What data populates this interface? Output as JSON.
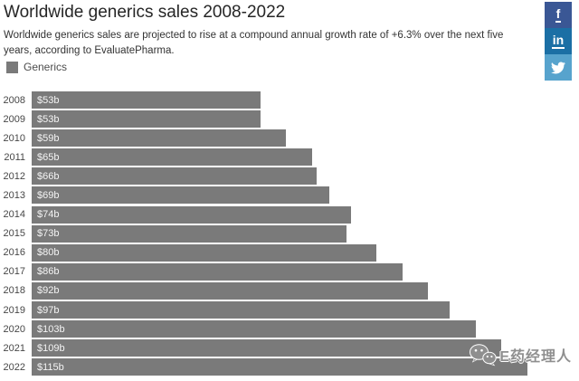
{
  "header": {
    "title": "Worldwide generics sales 2008-2022",
    "subtitle": "Worldwide generics sales are projected to rise at a compound annual growth rate of +6.3% over the next five years, according to EvaluatePharma."
  },
  "legend": {
    "label": "Generics",
    "marker_color": "#7a7a7a"
  },
  "social": {
    "facebook": {
      "glyph": "f",
      "color": "#3a5795"
    },
    "linkedin": {
      "glyph": "in",
      "color": "#1b6fa5"
    },
    "twitter": {
      "color": "#57a3cd"
    }
  },
  "watermark": {
    "text": "E药经理人"
  },
  "chart_data": {
    "type": "bar",
    "orientation": "horizontal",
    "title": "Worldwide generics sales 2008-2022",
    "subtitle": "Worldwide generics sales are projected to rise at a compound annual growth rate of +6.3% over the next five years, according to EvaluatePharma.",
    "categories": [
      "2008",
      "2009",
      "2010",
      "2011",
      "2012",
      "2013",
      "2014",
      "2015",
      "2016",
      "2017",
      "2018",
      "2019",
      "2020",
      "2021",
      "2022"
    ],
    "series": [
      {
        "name": "Generics",
        "values": [
          53,
          53,
          59,
          65,
          66,
          69,
          74,
          73,
          80,
          86,
          92,
          97,
          103,
          109,
          115
        ],
        "labels": [
          "$53b",
          "$53b",
          "$59b",
          "$65b",
          "$66b",
          "$69b",
          "$74b",
          "$73b",
          "$80b",
          "$86b",
          "$92b",
          "$97b",
          "$103b",
          "$109b",
          "$115b"
        ],
        "color": "#7a7a7a"
      }
    ],
    "xlabel": "",
    "ylabel": "",
    "xlim": [
      0,
      115
    ],
    "value_unit": "billion USD",
    "grid": false,
    "legend_position": "top-left",
    "data_labels": "inside-start, white"
  }
}
